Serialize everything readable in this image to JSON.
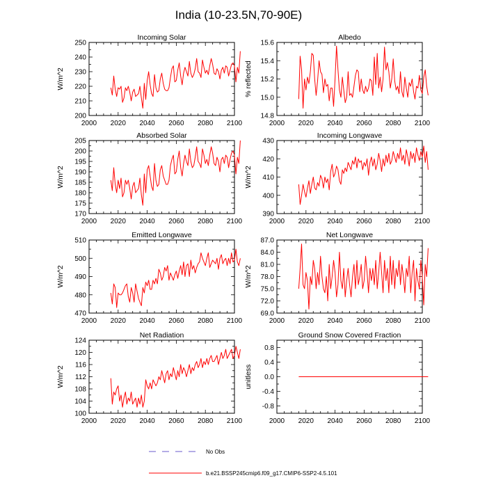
{
  "title": "India (10-23.5N,70-90E)",
  "colors": {
    "series": "#ff0000",
    "obs": "#6a5acd",
    "axis": "#000000"
  },
  "legend": {
    "obs_label": "No Obs",
    "model_label": "b.e21.BSSP245cmip6.f09_g17.CMIP6-SSP2-4.5.101"
  },
  "chart_data": [
    {
      "id": "incoming-solar",
      "type": "line",
      "title": "Incoming Solar",
      "xlabel": "",
      "ylabel": "W/m^2",
      "xlim": [
        2000,
        2100
      ],
      "ylim": [
        200,
        250
      ],
      "xticks": [
        2000,
        2020,
        2040,
        2060,
        2080,
        2100
      ],
      "yticks": [
        200,
        210,
        220,
        230,
        240,
        250
      ],
      "ytick_labels": [
        "200",
        "210",
        "220",
        "230",
        "240",
        "250"
      ],
      "series": [
        {
          "name": "b.e21.BSSP245cmip6.f09_g17.CMIP6-SSP2-4.5.101",
          "x_start": 2015,
          "values": [
            219,
            214,
            227,
            218,
            213,
            219,
            218,
            220,
            209,
            212,
            219,
            217,
            220,
            216,
            210,
            216,
            218,
            213,
            214,
            215,
            220,
            212,
            205,
            222,
            211,
            224,
            230,
            221,
            215,
            213,
            228,
            219,
            216,
            217,
            225,
            229,
            222,
            218,
            217,
            217,
            219,
            226,
            232,
            234,
            223,
            224,
            231,
            236,
            227,
            221,
            229,
            233,
            230,
            227,
            237,
            229,
            226,
            228,
            232,
            239,
            230,
            229,
            226,
            238,
            233,
            229,
            231,
            228,
            234,
            239,
            235,
            229,
            228,
            232,
            230,
            225,
            231,
            233,
            229,
            234,
            233,
            227,
            231,
            235,
            236,
            234,
            223,
            233,
            229,
            244
          ]
        }
      ]
    },
    {
      "id": "albedo",
      "type": "line",
      "title": "Albedo",
      "xlabel": "",
      "ylabel": "% reflected",
      "xlim": [
        2000,
        2100
      ],
      "ylim": [
        14.8,
        15.6
      ],
      "xticks": [
        2000,
        2020,
        2040,
        2060,
        2080,
        2100
      ],
      "yticks": [
        14.8,
        15.0,
        15.2,
        15.4,
        15.6
      ],
      "ytick_labels": [
        "14.8",
        "15.0",
        "15.2",
        "15.4",
        "15.6"
      ],
      "series": [
        {
          "name": "b.e21.BSSP245cmip6.f09_g17.CMIP6-SSP2-4.5.101",
          "x_start": 2015,
          "values": [
            14.98,
            15.45,
            15.3,
            14.88,
            15.2,
            15.08,
            15.22,
            15.15,
            15.28,
            15.48,
            15.46,
            15.2,
            15.02,
            15.18,
            15.4,
            15.28,
            15.25,
            15.05,
            15.2,
            15.12,
            15.14,
            14.96,
            15.1,
            15.1,
            14.9,
            15.2,
            15.56,
            15.3,
            15.08,
            15.0,
            15.22,
            15.08,
            14.94,
            15.0,
            15.28,
            15.02,
            15.04,
            15.0,
            15.12,
            15.24,
            15.3,
            15.28,
            15.06,
            15.2,
            15.08,
            15.04,
            15.12,
            15.06,
            15.1,
            15.2,
            15.18,
            15.02,
            15.44,
            15.14,
            15.48,
            15.1,
            15.22,
            15.06,
            15.2,
            15.55,
            15.3,
            15.38,
            15.28,
            15.1,
            15.2,
            15.42,
            15.18,
            15.08,
            15.12,
            15.04,
            15.28,
            15.06,
            15.0,
            15.22,
            15.1,
            15.0,
            15.16,
            15.12,
            15.2,
            15.06,
            14.98,
            15.12,
            15.1,
            15.24,
            15.08,
            15.04,
            15.22,
            15.3,
            15.12,
            15.02
          ]
        }
      ]
    },
    {
      "id": "absorbed-solar",
      "type": "line",
      "title": "Absorbed Solar",
      "xlabel": "",
      "ylabel": "W/m^2",
      "xlim": [
        2000,
        2100
      ],
      "ylim": [
        170,
        205
      ],
      "xticks": [
        2000,
        2020,
        2040,
        2060,
        2080,
        2100
      ],
      "yticks": [
        170,
        175,
        180,
        185,
        190,
        195,
        200,
        205
      ],
      "ytick_labels": [
        "170",
        "175",
        "180",
        "185",
        "190",
        "195",
        "200",
        "205"
      ],
      "series": [
        {
          "name": "b.e21.BSSP245cmip6.f09_g17.CMIP6-SSP2-4.5.101",
          "x_start": 2015,
          "values": [
            186,
            181,
            192,
            184,
            180,
            186,
            182,
            187,
            178,
            180,
            186,
            184,
            186,
            182,
            177,
            183,
            185,
            180,
            181,
            182,
            187,
            179,
            174,
            189,
            180,
            191,
            193,
            188,
            183,
            181,
            194,
            186,
            183,
            184,
            191,
            193,
            188,
            186,
            184,
            184,
            186,
            193,
            196,
            198,
            189,
            190,
            196,
            200,
            192,
            188,
            194,
            198,
            195,
            193,
            201,
            195,
            192,
            193,
            197,
            202,
            195,
            194,
            192,
            201,
            198,
            194,
            196,
            193,
            198,
            202,
            199,
            194,
            193,
            197,
            195,
            190,
            196,
            197,
            194,
            198,
            197,
            192,
            196,
            199,
            200,
            198,
            189,
            197,
            194,
            205
          ]
        }
      ]
    },
    {
      "id": "incoming-longwave",
      "type": "line",
      "title": "Incoming Longwave",
      "xlabel": "",
      "ylabel": "W/m^2",
      "xlim": [
        2000,
        2100
      ],
      "ylim": [
        390,
        430
      ],
      "xticks": [
        2000,
        2020,
        2040,
        2060,
        2080,
        2100
      ],
      "yticks": [
        390,
        400,
        410,
        420,
        430
      ],
      "ytick_labels": [
        "390",
        "400",
        "410",
        "420",
        "430"
      ],
      "series": [
        {
          "name": "b.e21.BSSP245cmip6.f09_g17.CMIP6-SSP2-4.5.101",
          "x_start": 2015,
          "values": [
            406,
            395,
            400,
            406,
            402,
            399,
            404,
            408,
            401,
            406,
            410,
            404,
            403,
            407,
            405,
            411,
            409,
            404,
            410,
            407,
            409,
            403,
            413,
            417,
            410,
            412,
            416,
            414,
            408,
            406,
            414,
            412,
            415,
            413,
            418,
            416,
            414,
            419,
            417,
            421,
            415,
            420,
            418,
            419,
            414,
            418,
            416,
            420,
            411,
            418,
            421,
            416,
            420,
            414,
            417,
            423,
            419,
            413,
            420,
            416,
            422,
            418,
            423,
            417,
            419,
            424,
            421,
            418,
            423,
            420,
            426,
            419,
            422,
            417,
            425,
            421,
            416,
            424,
            420,
            423,
            418,
            426,
            422,
            419,
            424,
            421,
            427,
            418,
            424,
            414
          ]
        }
      ]
    },
    {
      "id": "emitted-longwave",
      "type": "line",
      "title": "Emitted Longwave",
      "xlabel": "",
      "ylabel": "W/m^2",
      "xlim": [
        2000,
        2100
      ],
      "ylim": [
        470,
        510
      ],
      "xticks": [
        2000,
        2020,
        2040,
        2060,
        2080,
        2100
      ],
      "yticks": [
        470,
        480,
        490,
        500,
        510
      ],
      "ytick_labels": [
        "470",
        "480",
        "490",
        "500",
        "510"
      ],
      "series": [
        {
          "name": "b.e21.BSSP245cmip6.f09_g17.CMIP6-SSP2-4.5.101",
          "x_start": 2015,
          "values": [
            481,
            475,
            486,
            484,
            473,
            481,
            480,
            480,
            481,
            483,
            485,
            486,
            479,
            476,
            484,
            481,
            476,
            486,
            482,
            478,
            476,
            474,
            484,
            481,
            487,
            485,
            488,
            483,
            483,
            488,
            486,
            489,
            486,
            494,
            492,
            488,
            490,
            495,
            493,
            496,
            488,
            492,
            490,
            488,
            491,
            493,
            489,
            493,
            496,
            491,
            498,
            490,
            496,
            497,
            490,
            499,
            494,
            496,
            492,
            495,
            497,
            498,
            503,
            500,
            498,
            496,
            500,
            503,
            495,
            497,
            499,
            498,
            497,
            500,
            494,
            500,
            502,
            497,
            499,
            500,
            496,
            500,
            497,
            503,
            498,
            499,
            505,
            498,
            496,
            500
          ]
        }
      ]
    },
    {
      "id": "net-longwave",
      "type": "line",
      "title": "Net Longwave",
      "xlabel": "",
      "ylabel": "W/m^2",
      "xlim": [
        2000,
        2100
      ],
      "ylim": [
        69,
        87
      ],
      "xticks": [
        2000,
        2020,
        2040,
        2060,
        2080,
        2100
      ],
      "yticks": [
        69,
        72,
        75,
        78,
        81,
        84,
        87
      ],
      "ytick_labels": [
        "69.0",
        "72.0",
        "75.0",
        "78.0",
        "81.0",
        "84.0",
        "87.0"
      ],
      "series": [
        {
          "name": "b.e21.BSSP245cmip6.f09_g17.CMIP6-SSP2-4.5.101",
          "x_start": 2015,
          "values": [
            75,
            80,
            86,
            76,
            75,
            79,
            77,
            70,
            78,
            76,
            82,
            80,
            75,
            79,
            76,
            83,
            78,
            75,
            74,
            78,
            72,
            81,
            75,
            78,
            82,
            79,
            73,
            76,
            84,
            77,
            75,
            80,
            73,
            77,
            80,
            76,
            73,
            78,
            81,
            75,
            82,
            76,
            78,
            81,
            75,
            77,
            83,
            79,
            74,
            80,
            77,
            80,
            76,
            82,
            75,
            79,
            84,
            79,
            74,
            82,
            77,
            80,
            74,
            83,
            76,
            82,
            75,
            80,
            78,
            82,
            76,
            81,
            78,
            74,
            80,
            78,
            83,
            74,
            79,
            82,
            72,
            80,
            77,
            75,
            82,
            78,
            71,
            81,
            78,
            85
          ]
        }
      ]
    },
    {
      "id": "net-radiation",
      "type": "line",
      "title": "Net Radiation",
      "xlabel": "",
      "ylabel": "W/m^2",
      "xlim": [
        2000,
        2100
      ],
      "ylim": [
        100,
        124
      ],
      "xticks": [
        2000,
        2020,
        2040,
        2060,
        2080,
        2100
      ],
      "yticks": [
        100,
        104,
        108,
        112,
        116,
        120,
        124
      ],
      "ytick_labels": [
        "100",
        "104",
        "108",
        "112",
        "116",
        "120",
        "124"
      ],
      "series": [
        {
          "name": "b.e21.BSSP245cmip6.f09_g17.CMIP6-SSP2-4.5.101",
          "x_start": 2015,
          "values": [
            111.5,
            103,
            107,
            106,
            108,
            109,
            104,
            106,
            102,
            105,
            107,
            103,
            105,
            104,
            107,
            103,
            104,
            105,
            102,
            105,
            103,
            106,
            102,
            104,
            111,
            109,
            108,
            110,
            108,
            111,
            110,
            109,
            110,
            112,
            111,
            114,
            112,
            110,
            113,
            114,
            111,
            113,
            112,
            115,
            113,
            111,
            114,
            112,
            116,
            113,
            115,
            114,
            112,
            114,
            116,
            113,
            115,
            114,
            116,
            117,
            115,
            116,
            118,
            115,
            117,
            116,
            118,
            116,
            118,
            119,
            117,
            117,
            118,
            119,
            116,
            118,
            120,
            118,
            119,
            121,
            118,
            119,
            120,
            121,
            118,
            119,
            122,
            120,
            118,
            121
          ]
        }
      ]
    },
    {
      "id": "ground-snow",
      "type": "line",
      "title": "Ground Snow Covered Fraction",
      "xlabel": "",
      "ylabel": "unitless",
      "xlim": [
        2000,
        2100
      ],
      "ylim": [
        -1,
        1
      ],
      "xticks": [
        2000,
        2020,
        2040,
        2060,
        2080,
        2100
      ],
      "yticks": [
        -0.8,
        -0.4,
        0.0,
        0.4,
        0.8
      ],
      "ytick_labels": [
        "-0.8",
        "-0.4",
        "0.0",
        "0.4",
        "0.8"
      ],
      "series": [
        {
          "name": "b.e21.BSSP245cmip6.f09_g17.CMIP6-SSP2-4.5.101",
          "x_start": 2015,
          "values": [
            0,
            0,
            0,
            0,
            0,
            0,
            0,
            0,
            0,
            0,
            0,
            0,
            0,
            0,
            0,
            0,
            0,
            0,
            0,
            0,
            0,
            0,
            0,
            0,
            0,
            0,
            0,
            0,
            0,
            0,
            0,
            0,
            0,
            0,
            0,
            0,
            0,
            0,
            0,
            0,
            0,
            0,
            0,
            0,
            0,
            0,
            0,
            0,
            0,
            0,
            0,
            0,
            0,
            0,
            0,
            0,
            0,
            0,
            0,
            0,
            0,
            0,
            0,
            0,
            0,
            0,
            0,
            0,
            0,
            0,
            0,
            0,
            0,
            0,
            0,
            0,
            0,
            0,
            0,
            0,
            0,
            0,
            0,
            0,
            0,
            0,
            0,
            0,
            0,
            0
          ]
        }
      ]
    }
  ]
}
